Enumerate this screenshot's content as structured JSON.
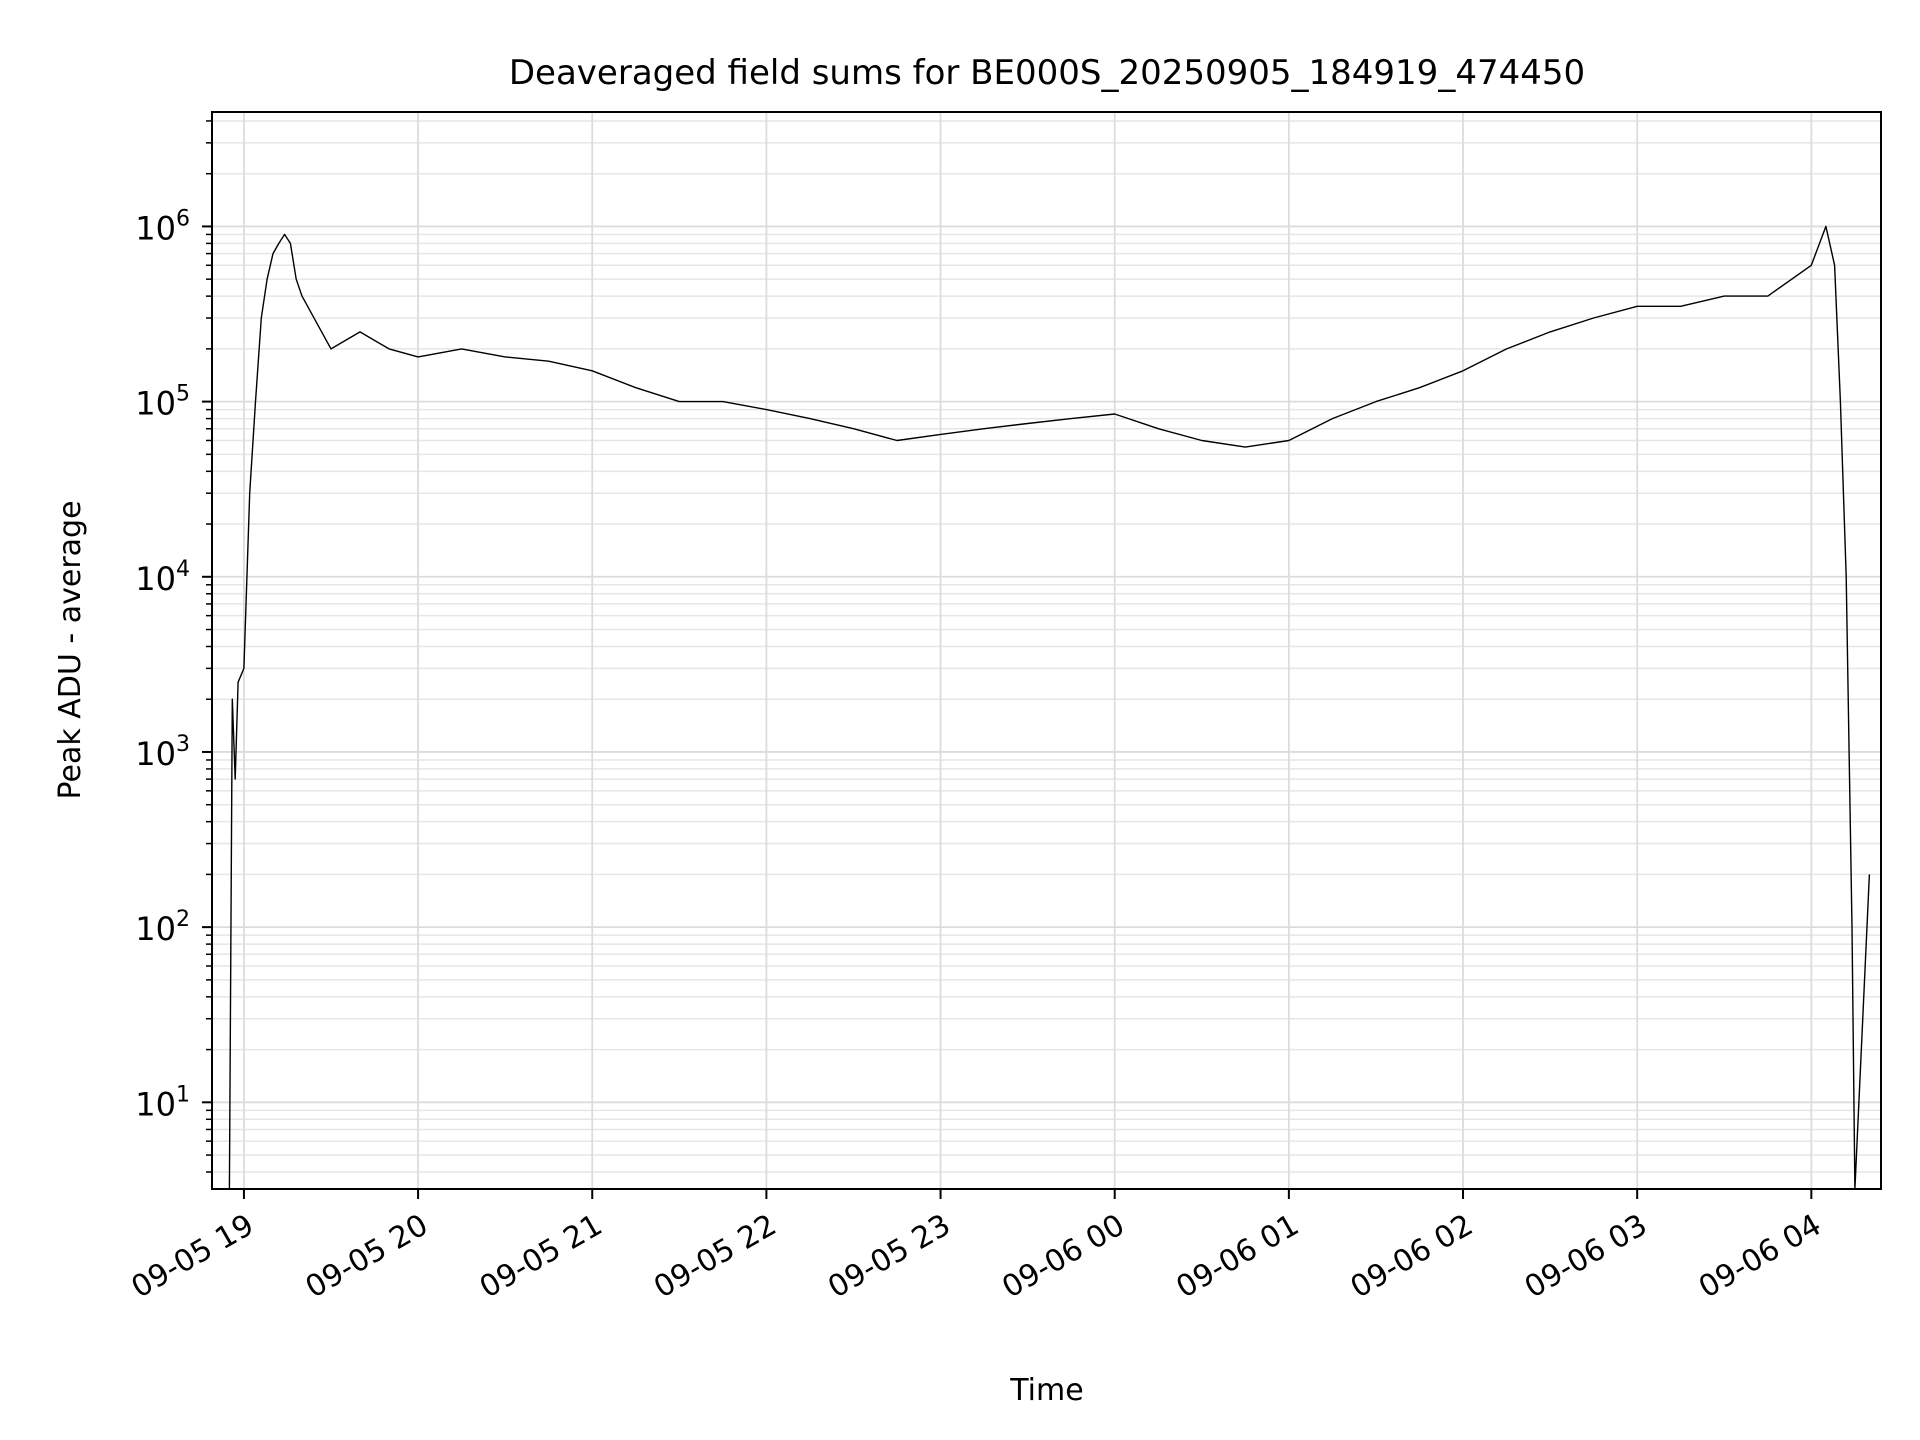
{
  "chart_data": {
    "type": "line",
    "title": "Deaveraged field sums for BE000S_20250905_184919_474450",
    "xlabel": "Time",
    "ylabel": "Peak ADU - average",
    "yscale": "log",
    "xlim": [
      "2025-09-05 18:49",
      "2025-09-06 04:24"
    ],
    "ylim": [
      3.2,
      4500000
    ],
    "grid": "major and minor",
    "x_ticks": [
      "2025-09-05 19:00",
      "2025-09-05 20:00",
      "2025-09-05 21:00",
      "2025-09-05 22:00",
      "2025-09-05 23:00",
      "2025-09-06 00:00",
      "2025-09-06 01:00",
      "2025-09-06 02:00",
      "2025-09-06 03:00",
      "2025-09-06 04:00"
    ],
    "x_tick_labels": [
      "09-05 19",
      "09-05 20",
      "09-05 21",
      "09-05 22",
      "09-05 23",
      "09-06 00",
      "09-06 01",
      "09-06 02",
      "09-06 03",
      "09-06 04"
    ],
    "y_ticks": [
      10,
      100,
      1000,
      10000,
      100000,
      1000000
    ],
    "y_tick_labels": [
      {
        "base": "10",
        "exp": "1"
      },
      {
        "base": "10",
        "exp": "2"
      },
      {
        "base": "10",
        "exp": "3"
      },
      {
        "base": "10",
        "exp": "4"
      },
      {
        "base": "10",
        "exp": "5"
      },
      {
        "base": "10",
        "exp": "6"
      }
    ],
    "series": [
      {
        "color": "#000000",
        "x": [
          "2025-09-05 18:55",
          "2025-09-05 18:56",
          "2025-09-05 18:57",
          "2025-09-05 18:58",
          "2025-09-05 19:00",
          "2025-09-05 19:02",
          "2025-09-05 19:04",
          "2025-09-05 19:06",
          "2025-09-05 19:08",
          "2025-09-05 19:10",
          "2025-09-05 19:12",
          "2025-09-05 19:14",
          "2025-09-05 19:16",
          "2025-09-05 19:18",
          "2025-09-05 19:20",
          "2025-09-05 19:30",
          "2025-09-05 19:40",
          "2025-09-05 19:50",
          "2025-09-05 20:00",
          "2025-09-05 20:15",
          "2025-09-05 20:30",
          "2025-09-05 20:45",
          "2025-09-05 21:00",
          "2025-09-05 21:15",
          "2025-09-05 21:30",
          "2025-09-05 21:45",
          "2025-09-05 22:00",
          "2025-09-05 22:15",
          "2025-09-05 22:30",
          "2025-09-05 22:45",
          "2025-09-05 23:00",
          "2025-09-05 23:15",
          "2025-09-05 23:30",
          "2025-09-05 23:45",
          "2025-09-06 00:00",
          "2025-09-06 00:15",
          "2025-09-06 00:30",
          "2025-09-06 00:45",
          "2025-09-06 01:00",
          "2025-09-06 01:15",
          "2025-09-06 01:30",
          "2025-09-06 01:45",
          "2025-09-06 02:00",
          "2025-09-06 02:15",
          "2025-09-06 02:30",
          "2025-09-06 02:45",
          "2025-09-06 03:00",
          "2025-09-06 03:15",
          "2025-09-06 03:30",
          "2025-09-06 03:45",
          "2025-09-06 04:00",
          "2025-09-06 04:05",
          "2025-09-06 04:08",
          "2025-09-06 04:10",
          "2025-09-06 04:12",
          "2025-09-06 04:13",
          "2025-09-06 04:14",
          "2025-09-06 04:15",
          "2025-09-06 04:20"
        ],
        "y": [
          3,
          2000,
          700,
          2500,
          3000,
          30000,
          100000,
          300000,
          500000,
          700000,
          800000,
          900000,
          800000,
          500000,
          400000,
          200000,
          250000,
          200000,
          180000,
          200000,
          180000,
          170000,
          150000,
          120000,
          100000,
          100000,
          90000,
          80000,
          70000,
          60000,
          65000,
          70000,
          75000,
          80000,
          85000,
          70000,
          60000,
          55000,
          60000,
          80000,
          100000,
          120000,
          150000,
          200000,
          250000,
          300000,
          350000,
          350000,
          400000,
          400000,
          600000,
          1000000,
          600000,
          100000,
          10000,
          1000,
          100,
          3,
          200
        ]
      }
    ]
  }
}
